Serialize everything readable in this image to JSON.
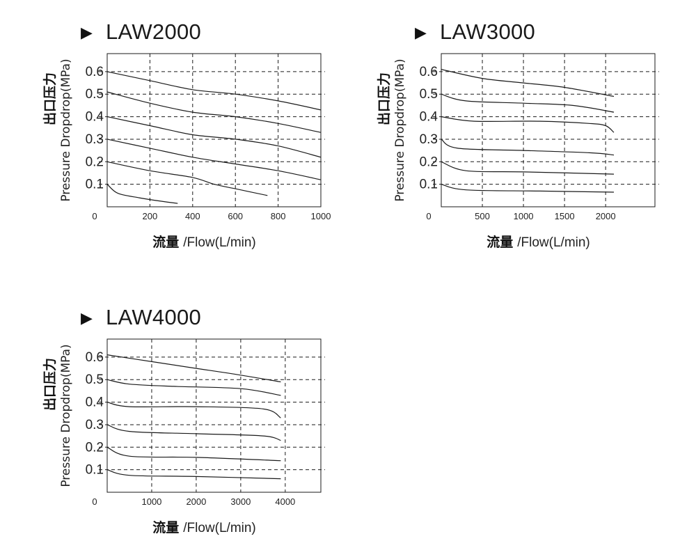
{
  "chart_data": [
    {
      "type": "line",
      "title": "LAW2000",
      "ylabel_cn": "出口压力",
      "ylabel_en": "Pressure Dropdrop(MPa)",
      "xlabel_cn": "流量",
      "xlabel_en": "/Flow(L/min)",
      "xlim": [
        0,
        1000
      ],
      "ylim": [
        0,
        0.68
      ],
      "x_ticks": [
        "0",
        "200",
        "400",
        "600",
        "800",
        "1000"
      ],
      "y_ticks": [
        "0.1",
        "0.2",
        "0.3",
        "0.4",
        "0.5",
        "0.6"
      ],
      "x_grid": [
        200,
        400,
        600,
        800,
        1000
      ],
      "y_grid": [
        0.1,
        0.2,
        0.3,
        0.4,
        0.5,
        0.6
      ],
      "grid": "dashed",
      "series": [
        {
          "points": [
            [
              0,
              0.6
            ],
            [
              200,
              0.56
            ],
            [
              400,
              0.52
            ],
            [
              600,
              0.5
            ],
            [
              800,
              0.47
            ],
            [
              1000,
              0.43
            ]
          ]
        },
        {
          "points": [
            [
              0,
              0.51
            ],
            [
              200,
              0.46
            ],
            [
              400,
              0.42
            ],
            [
              600,
              0.4
            ],
            [
              800,
              0.37
            ],
            [
              1000,
              0.33
            ]
          ]
        },
        {
          "points": [
            [
              0,
              0.4
            ],
            [
              200,
              0.36
            ],
            [
              400,
              0.32
            ],
            [
              600,
              0.3
            ],
            [
              800,
              0.27
            ],
            [
              1000,
              0.22
            ]
          ]
        },
        {
          "points": [
            [
              0,
              0.3
            ],
            [
              200,
              0.26
            ],
            [
              400,
              0.22
            ],
            [
              600,
              0.19
            ],
            [
              800,
              0.16
            ],
            [
              1000,
              0.12
            ]
          ]
        },
        {
          "points": [
            [
              0,
              0.2
            ],
            [
              200,
              0.16
            ],
            [
              400,
              0.13
            ],
            [
              500,
              0.1
            ],
            [
              600,
              0.08
            ],
            [
              750,
              0.05
            ]
          ]
        },
        {
          "points": [
            [
              0,
              0.1
            ],
            [
              50,
              0.06
            ],
            [
              150,
              0.04
            ],
            [
              250,
              0.025
            ],
            [
              330,
              0.015
            ]
          ]
        }
      ]
    },
    {
      "type": "line",
      "title": "LAW3000",
      "ylabel_cn": "出口压力",
      "ylabel_en": "Pressure Dropdrop(MPa)",
      "xlabel_cn": "流量",
      "xlabel_en": "/Flow(L/min)",
      "xlim": [
        0,
        2600
      ],
      "ylim": [
        0,
        0.68
      ],
      "x_ticks": [
        "0",
        "500",
        "1000",
        "1500",
        "2000"
      ],
      "y_ticks": [
        "0.1",
        "0.2",
        "0.3",
        "0.4",
        "0.5",
        "0.6"
      ],
      "x_grid": [
        500,
        1000,
        1500,
        2000
      ],
      "y_grid": [
        0.1,
        0.2,
        0.3,
        0.4,
        0.5,
        0.6
      ],
      "grid": "dashed",
      "series": [
        {
          "points": [
            [
              0,
              0.61
            ],
            [
              500,
              0.57
            ],
            [
              1000,
              0.55
            ],
            [
              1500,
              0.53
            ],
            [
              2100,
              0.49
            ]
          ]
        },
        {
          "points": [
            [
              0,
              0.5
            ],
            [
              300,
              0.47
            ],
            [
              1000,
              0.46
            ],
            [
              1600,
              0.45
            ],
            [
              2100,
              0.42
            ]
          ]
        },
        {
          "points": [
            [
              0,
              0.4
            ],
            [
              400,
              0.38
            ],
            [
              1200,
              0.38
            ],
            [
              1800,
              0.37
            ],
            [
              2000,
              0.36
            ],
            [
              2100,
              0.33
            ]
          ]
        },
        {
          "points": [
            [
              0,
              0.3
            ],
            [
              200,
              0.26
            ],
            [
              1000,
              0.25
            ],
            [
              1800,
              0.24
            ],
            [
              2100,
              0.23
            ]
          ]
        },
        {
          "points": [
            [
              0,
              0.2
            ],
            [
              300,
              0.16
            ],
            [
              1000,
              0.155
            ],
            [
              2100,
              0.145
            ]
          ]
        },
        {
          "points": [
            [
              0,
              0.1
            ],
            [
              300,
              0.075
            ],
            [
              1200,
              0.07
            ],
            [
              2100,
              0.065
            ]
          ]
        }
      ]
    },
    {
      "type": "line",
      "title": "LAW4000",
      "ylabel_cn": "出口压力",
      "ylabel_en": "Pressure Dropdrop(MPa)",
      "xlabel_cn": "流量",
      "xlabel_en": "/Flow(L/min)",
      "xlim": [
        0,
        4800
      ],
      "ylim": [
        0,
        0.68
      ],
      "x_ticks": [
        "0",
        "1000",
        "2000",
        "3000",
        "4000"
      ],
      "y_ticks": [
        "0.1",
        "0.2",
        "0.3",
        "0.4",
        "0.5",
        "0.6"
      ],
      "x_grid": [
        1000,
        2000,
        3000,
        4000
      ],
      "y_grid": [
        0.1,
        0.2,
        0.3,
        0.4,
        0.5,
        0.6
      ],
      "grid": "dashed",
      "series": [
        {
          "points": [
            [
              0,
              0.61
            ],
            [
              1000,
              0.58
            ],
            [
              2000,
              0.55
            ],
            [
              3000,
              0.52
            ],
            [
              3900,
              0.49
            ]
          ]
        },
        {
          "points": [
            [
              0,
              0.5
            ],
            [
              500,
              0.48
            ],
            [
              1500,
              0.47
            ],
            [
              3000,
              0.46
            ],
            [
              3900,
              0.43
            ]
          ]
        },
        {
          "points": [
            [
              0,
              0.4
            ],
            [
              500,
              0.38
            ],
            [
              2000,
              0.38
            ],
            [
              3500,
              0.37
            ],
            [
              3900,
              0.33
            ]
          ]
        },
        {
          "points": [
            [
              0,
              0.3
            ],
            [
              500,
              0.27
            ],
            [
              2000,
              0.26
            ],
            [
              3500,
              0.25
            ],
            [
              3900,
              0.23
            ]
          ]
        },
        {
          "points": [
            [
              0,
              0.2
            ],
            [
              500,
              0.16
            ],
            [
              2000,
              0.155
            ],
            [
              3900,
              0.14
            ]
          ]
        },
        {
          "points": [
            [
              0,
              0.1
            ],
            [
              500,
              0.075
            ],
            [
              2000,
              0.07
            ],
            [
              3900,
              0.06
            ]
          ]
        }
      ]
    }
  ]
}
